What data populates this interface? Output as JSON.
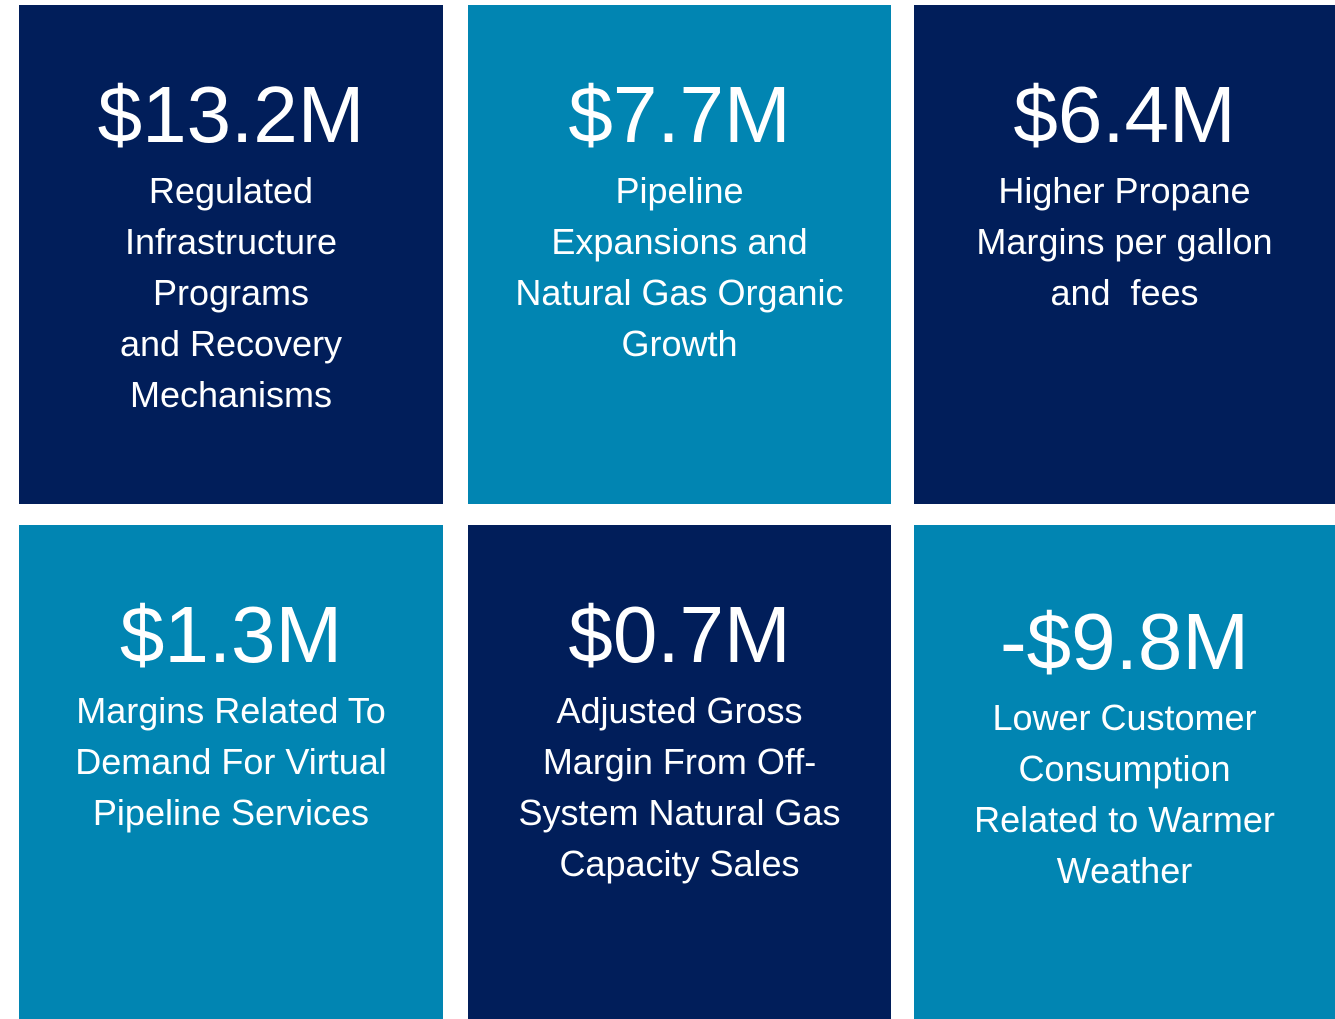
{
  "tiles": [
    {
      "amount": "$13.2M",
      "color": "#011e5a",
      "lines": [
        "Regulated",
        "Infrastructure",
        "Programs",
        "and Recovery",
        "Mechanisms"
      ]
    },
    {
      "amount": "$7.7M",
      "color": "#0185b2",
      "lines": [
        "Pipeline",
        "Expansions and",
        "Natural Gas Organic",
        "Growth"
      ]
    },
    {
      "amount": "$6.4M",
      "color": "#011e5a",
      "lines": [
        "Higher Propane",
        "Margins per gallon",
        "and  fees"
      ]
    },
    {
      "amount": "$1.3M",
      "color": "#0185b2",
      "lines": [
        "Margins Related To",
        "Demand For Virtual",
        "Pipeline Services"
      ]
    },
    {
      "amount": "$0.7M",
      "color": "#011e5a",
      "lines": [
        "Adjusted Gross",
        "Margin From Off-",
        "System Natural Gas",
        "Capacity Sales"
      ]
    },
    {
      "amount": "-$9.8M",
      "color": "#0185b2",
      "lines": [
        "Lower Customer",
        "Consumption",
        "Related to Warmer",
        "Weather"
      ]
    }
  ]
}
